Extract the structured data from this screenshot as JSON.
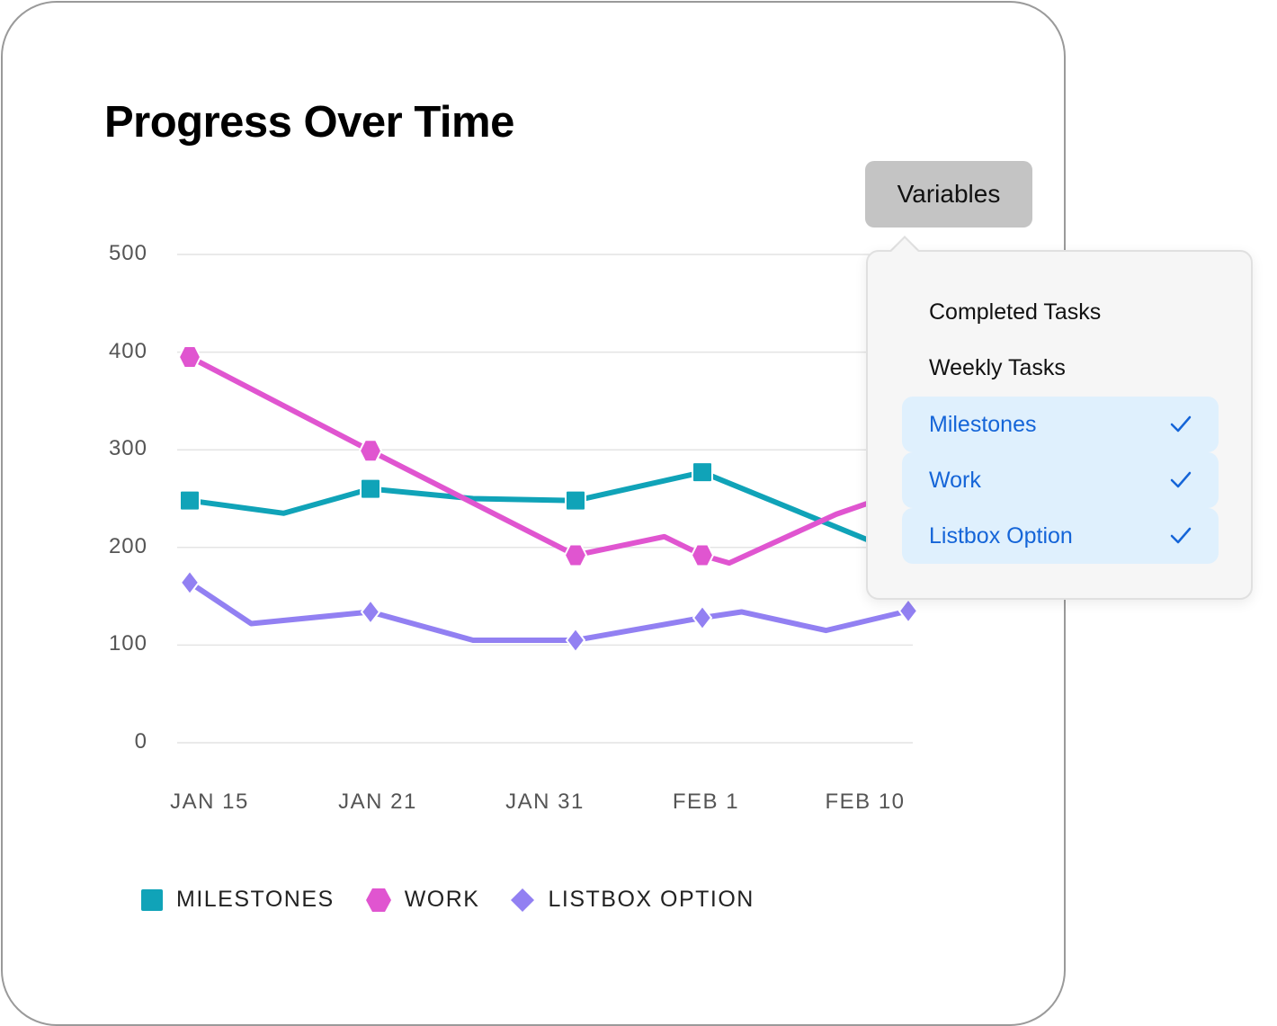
{
  "title": "Progress Over Time",
  "variables_button": "Variables",
  "popover": {
    "options": [
      {
        "label": "Completed Tasks",
        "selected": false
      },
      {
        "label": "Weekly Tasks",
        "selected": false
      },
      {
        "label": "Milestones",
        "selected": true
      },
      {
        "label": "Work",
        "selected": true
      },
      {
        "label": "Listbox Option",
        "selected": true
      }
    ],
    "selected_color": "#1565d8",
    "selected_bg": "#dff0fd"
  },
  "chart_data": {
    "type": "line",
    "title": "Progress Over Time",
    "categories": [
      "JAN 15",
      "JAN 21",
      "JAN 31",
      "FEB 1",
      "FEB 10"
    ],
    "yticks": [
      "500",
      "400",
      "300",
      "200",
      "100",
      "0"
    ],
    "ylim": [
      0,
      500
    ],
    "grid": true,
    "legend_position": "bottom-left",
    "series": [
      {
        "name": "MILESTONES",
        "marker": "square",
        "color": "#10a3b8",
        "points": [
          [
            0,
            248
          ],
          [
            0.52,
            235
          ],
          [
            1,
            260
          ],
          [
            1.5,
            250
          ],
          [
            2,
            248
          ],
          [
            3,
            277
          ],
          [
            3.8,
            208
          ]
        ]
      },
      {
        "name": "WORK",
        "marker": "hexagon",
        "color": "#e055d0",
        "points": [
          [
            0,
            395
          ],
          [
            1,
            299
          ],
          [
            2,
            192
          ],
          [
            2.7,
            211
          ],
          [
            3,
            192
          ],
          [
            3.13,
            184
          ],
          [
            3.65,
            234
          ],
          [
            3.8,
            245
          ]
        ]
      },
      {
        "name": "LISTBOX OPTION",
        "marker": "diamond",
        "color": "#9280f2",
        "points": [
          [
            0,
            164
          ],
          [
            0.34,
            122
          ],
          [
            1,
            134
          ],
          [
            1.5,
            105
          ],
          [
            2,
            105
          ],
          [
            3,
            128
          ],
          [
            3.19,
            134
          ],
          [
            3.6,
            115
          ],
          [
            4,
            135
          ]
        ]
      }
    ]
  }
}
